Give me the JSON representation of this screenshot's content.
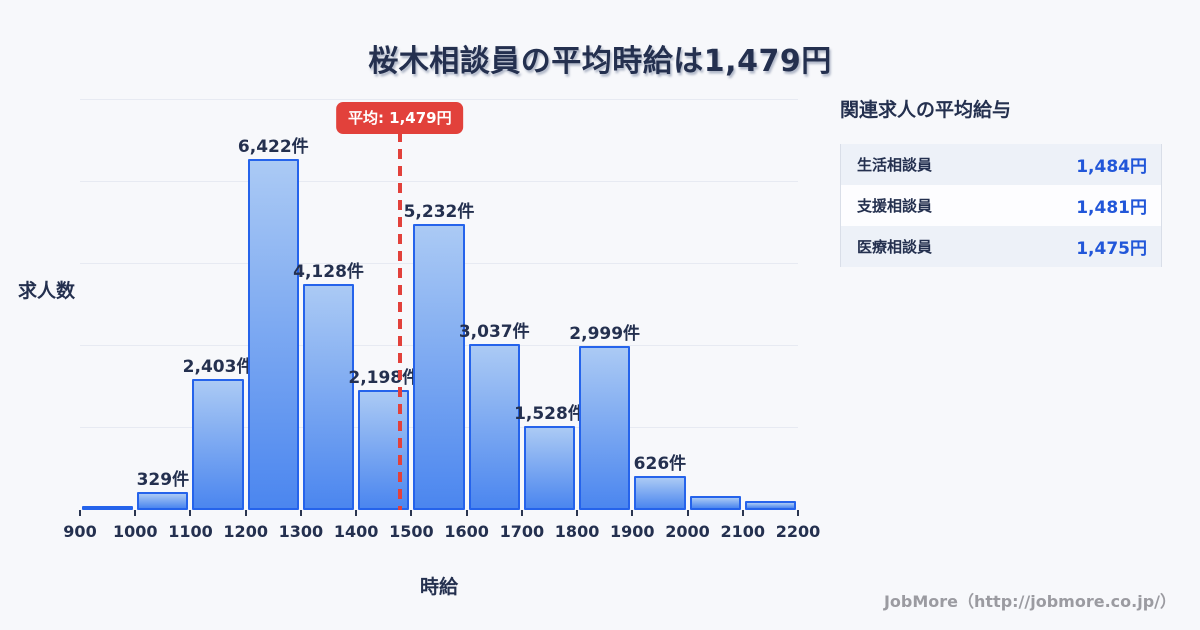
{
  "title": "桜木相談員の平均時給は1,479円",
  "colors": {
    "background": "#f7f8fb",
    "bar_border": "#2563eb",
    "bar_gradient_top": "#abcaf4",
    "bar_gradient_bottom": "#4b86ef",
    "mean_line_red": "#e2413b",
    "value_blue": "#2156d9",
    "text_navy": "#24304f",
    "gridline": "#e7eaf2"
  },
  "chart_data": {
    "type": "bar",
    "title": "桜木相談員の平均時給は1,479円",
    "xlabel": "時給",
    "ylabel": "求人数",
    "bin_edges": [
      900,
      1000,
      1100,
      1200,
      1300,
      1400,
      1500,
      1600,
      1700,
      1800,
      1900,
      2000,
      2100,
      2200
    ],
    "x_tick_labels": [
      "900",
      "1000",
      "1100",
      "1200",
      "1300",
      "1400",
      "1500",
      "1600",
      "1700",
      "1800",
      "1900",
      "2000",
      "2100",
      "2200"
    ],
    "values": [
      50,
      329,
      2403,
      6422,
      4128,
      2198,
      5232,
      3037,
      1528,
      2999,
      626,
      250,
      170
    ],
    "bar_labels": [
      "",
      "329件",
      "2,403件",
      "6,422件",
      "4,128件",
      "2,198件",
      "5,232件",
      "3,037件",
      "1,528件",
      "2,999件",
      "626件",
      "",
      ""
    ],
    "ylim": [
      0,
      7500
    ],
    "gridline_step": 1500,
    "grid": true,
    "legend": "none",
    "mean_line": {
      "value": 1479,
      "label": "平均: 1,479円"
    }
  },
  "side_panel": {
    "title": "関連求人の平均給与",
    "rows": [
      {
        "label": "生活相談員",
        "value": "1,484円"
      },
      {
        "label": "支援相談員",
        "value": "1,481円"
      },
      {
        "label": "医療相談員",
        "value": "1,475円"
      }
    ]
  },
  "footer": {
    "credit": "JobMore（http://jobmore.co.jp/）"
  }
}
